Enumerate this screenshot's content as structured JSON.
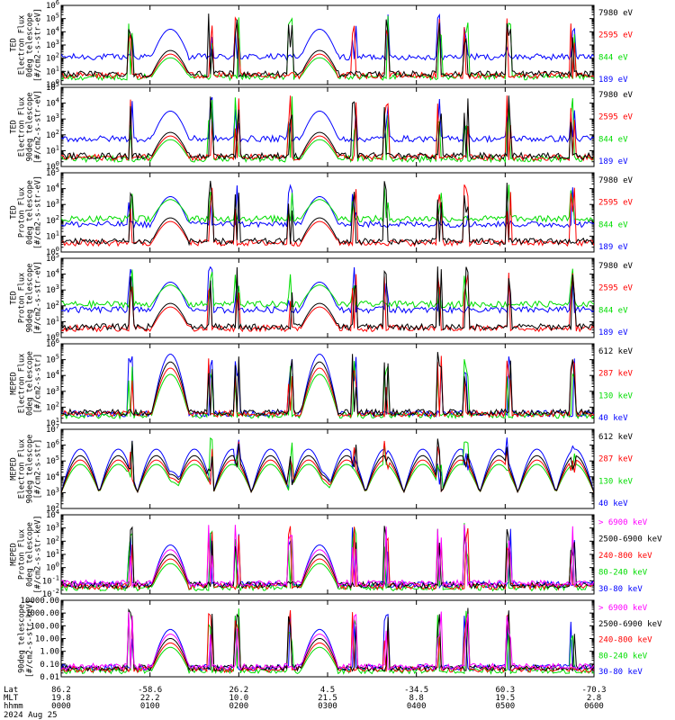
{
  "chart_data": [
    {
      "type": "line",
      "ylabel": [
        "TED",
        "Electron Flux",
        "0deg telescope",
        "[#/cm2-s-str-eV]"
      ],
      "yticks": [
        "10^0",
        "10^1",
        "10^2",
        "10^3",
        "10^4",
        "10^5",
        "10^6"
      ],
      "ylim": [
        1,
        1000000
      ],
      "yscale": "log",
      "series": [
        {
          "name": "7980 eV",
          "color": "#000000"
        },
        {
          "name": "2595 eV",
          "color": "#ff0000"
        },
        {
          "name": "844 eV",
          "color": "#00dd00"
        },
        {
          "name": "189 eV",
          "color": "#0000ff"
        }
      ]
    },
    {
      "type": "line",
      "ylabel": [
        "TED",
        "Electron Flux",
        "90deg telescope",
        "[#/cm2-s-str-eV]"
      ],
      "yticks": [
        "10^0",
        "10^1",
        "10^2",
        "10^3",
        "10^4",
        "10^5"
      ],
      "ylim": [
        1,
        100000
      ],
      "yscale": "log",
      "series": [
        {
          "name": "7980 eV",
          "color": "#000000"
        },
        {
          "name": "2595 eV",
          "color": "#ff0000"
        },
        {
          "name": "844 eV",
          "color": "#00dd00"
        },
        {
          "name": "189 eV",
          "color": "#0000ff"
        }
      ]
    },
    {
      "type": "line",
      "ylabel": [
        "TED",
        "Proton Flux",
        "0deg telescope",
        "[#/cm2-s-str-eV]"
      ],
      "yticks": [
        "10^0",
        "10^1",
        "10^2",
        "10^3",
        "10^4",
        "10^5"
      ],
      "ylim": [
        1,
        100000
      ],
      "yscale": "log",
      "series": [
        {
          "name": "7980 eV",
          "color": "#000000"
        },
        {
          "name": "2595 eV",
          "color": "#ff0000"
        },
        {
          "name": "844 eV",
          "color": "#00dd00"
        },
        {
          "name": "189 eV",
          "color": "#0000ff"
        }
      ]
    },
    {
      "type": "line",
      "ylabel": [
        "TED",
        "Proton Flux",
        "90deg telescope",
        "[#/cm2-s-str-eV]"
      ],
      "yticks": [
        "10^0",
        "10^1",
        "10^2",
        "10^3",
        "10^4",
        "10^5"
      ],
      "ylim": [
        1,
        100000
      ],
      "yscale": "log",
      "series": [
        {
          "name": "7980 eV",
          "color": "#000000"
        },
        {
          "name": "2595 eV",
          "color": "#ff0000"
        },
        {
          "name": "844 eV",
          "color": "#00dd00"
        },
        {
          "name": "189 eV",
          "color": "#0000ff"
        }
      ]
    },
    {
      "type": "line",
      "ylabel": [
        "MEPED",
        "Electron Flux",
        "0deg telescope",
        "[#/cm2-s-str]"
      ],
      "yticks": [
        "10^1",
        "10^2",
        "10^3",
        "10^4",
        "10^5",
        "10^6"
      ],
      "ylim": [
        10,
        1000000
      ],
      "yscale": "log",
      "series": [
        {
          "name": "612 keV",
          "color": "#000000"
        },
        {
          "name": "287 keV",
          "color": "#ff0000"
        },
        {
          "name": "130 keV",
          "color": "#00dd00"
        },
        {
          "name": "40 keV",
          "color": "#0000ff"
        }
      ]
    },
    {
      "type": "line",
      "ylabel": [
        "MEPED",
        "Electron Flux",
        "90deg telescope",
        "[#/cm2-s-str]"
      ],
      "yticks": [
        "10^2",
        "10^3",
        "10^4",
        "10^5",
        "10^6",
        "10^7"
      ],
      "ylim": [
        100,
        10000000
      ],
      "yscale": "log",
      "series": [
        {
          "name": "612 keV",
          "color": "#000000"
        },
        {
          "name": "287 keV",
          "color": "#ff0000"
        },
        {
          "name": "130 keV",
          "color": "#00dd00"
        },
        {
          "name": "40 keV",
          "color": "#0000ff"
        }
      ]
    },
    {
      "type": "line",
      "ylabel": [
        "MEPED",
        "Proton Flux",
        "0deg telescope",
        "[#/cm2-s-str-keV]"
      ],
      "yticks": [
        "10^-2",
        "10^-1",
        "10^0",
        "10^1",
        "10^2",
        "10^3",
        "10^4"
      ],
      "ylim": [
        0.01,
        10000
      ],
      "yscale": "log",
      "series": [
        {
          "name": "> 6900 keV",
          "color": "#ff00ff"
        },
        {
          "name": "2500-6900 keV",
          "color": "#000000"
        },
        {
          "name": "240-800 keV",
          "color": "#ff0000"
        },
        {
          "name": "80-240 keV",
          "color": "#00dd00"
        },
        {
          "name": "30-80 keV",
          "color": "#0000ff"
        }
      ]
    },
    {
      "type": "line",
      "ylabel": [
        "90deg telescope",
        "[#/cm2-s-str-keV]"
      ],
      "yticks": [
        "0.01",
        "0.10",
        "1.00",
        "10.00",
        "100.00",
        "1000.00",
        "10000.00"
      ],
      "ylim": [
        0.01,
        10000
      ],
      "yscale": "log",
      "series": [
        {
          "name": "> 6900 keV",
          "color": "#ff00ff"
        },
        {
          "name": "2500-6900 keV",
          "color": "#000000"
        },
        {
          "name": "240-800 keV",
          "color": "#ff0000"
        },
        {
          "name": "80-240 keV",
          "color": "#00dd00"
        },
        {
          "name": "30-80 keV",
          "color": "#0000ff"
        }
      ]
    }
  ],
  "x_axis": {
    "row_labels": [
      "Lat",
      "MLT",
      "hhmm",
      "2024 Aug 25"
    ],
    "lat": [
      "86.2",
      "-58.6",
      "26.2",
      "4.5",
      "-34.5",
      "60.3",
      "-70.3"
    ],
    "mlt": [
      "19.8",
      "22.2",
      "10.0",
      "21.5",
      "8.8",
      "19.5",
      "2.8"
    ],
    "hhmm": [
      "0000",
      "0100",
      "0200",
      "0300",
      "0400",
      "0500",
      "0600"
    ]
  }
}
